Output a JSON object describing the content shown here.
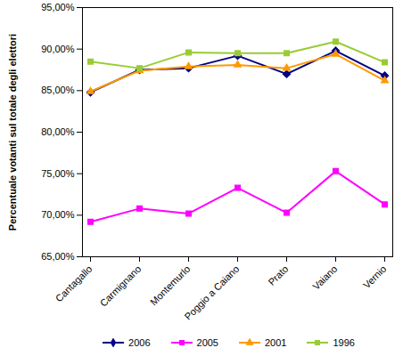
{
  "chart_data": {
    "type": "line",
    "y_label": "Percentuale votanti sul totale degli elettori",
    "categories": [
      "Cantagallo",
      "Carmignano",
      "Montemurlo",
      "Poggio a Caiano",
      "Prato",
      "Vaiano",
      "Vernio"
    ],
    "series": [
      {
        "name": "2006",
        "color": "#000080",
        "marker": "diamond",
        "values": [
          84.8,
          87.5,
          87.7,
          89.2,
          87.0,
          89.8,
          86.8
        ]
      },
      {
        "name": "2005",
        "color": "#ff00ff",
        "marker": "square",
        "values": [
          69.2,
          70.8,
          70.2,
          73.3,
          70.3,
          75.3,
          71.3
        ]
      },
      {
        "name": "2001",
        "color": "#ff9900",
        "marker": "triangle",
        "values": [
          84.9,
          87.4,
          87.9,
          88.1,
          87.7,
          89.4,
          86.2
        ]
      },
      {
        "name": "1996",
        "color": "#99cc33",
        "marker": "square",
        "values": [
          88.5,
          87.7,
          89.6,
          89.5,
          89.5,
          90.9,
          88.4
        ]
      }
    ],
    "ylim": [
      65,
      95
    ],
    "yticks": [
      {
        "value": 65,
        "label": "65,00%"
      },
      {
        "value": 70,
        "label": "70,00%"
      },
      {
        "value": 75,
        "label": "75,00%"
      },
      {
        "value": 80,
        "label": "80,00%"
      },
      {
        "value": 85,
        "label": "85,00%"
      },
      {
        "value": 90,
        "label": "90,00%"
      },
      {
        "value": 95,
        "label": "95,00%"
      }
    ],
    "grid": false,
    "legend": "bottom"
  }
}
